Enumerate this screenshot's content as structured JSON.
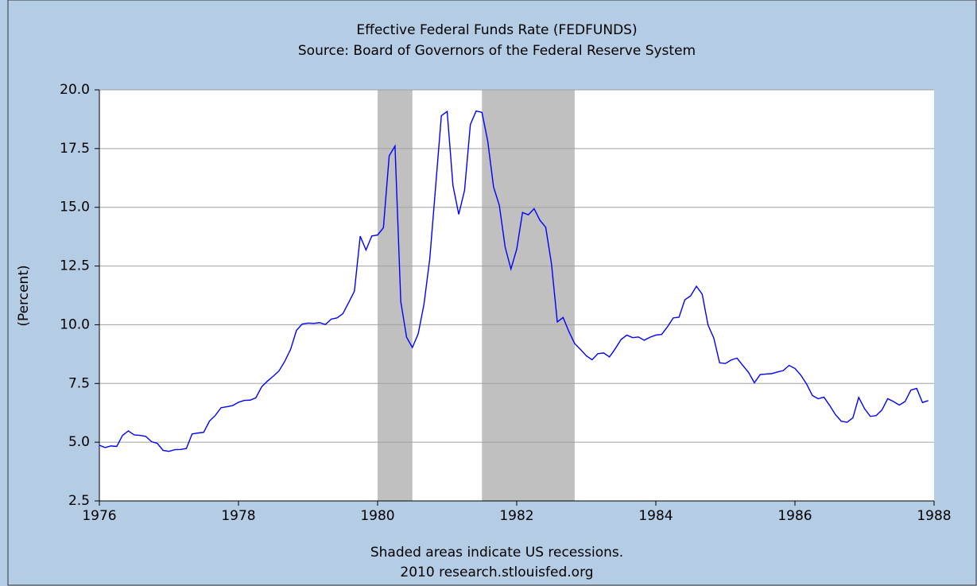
{
  "chart_data": {
    "type": "line",
    "title": "Effective Federal Funds Rate (FEDFUNDS)",
    "subtitle": "Source: Board of Governors of the Federal Reserve System",
    "y_label": "(Percent)",
    "notes": [
      "Shaded areas indicate US recessions.",
      "2010 research.stlouisfed.org"
    ],
    "color": "#0000ff",
    "grid": true,
    "shaded": [
      {
        "start": "1980-01",
        "end": "1980-07"
      },
      {
        "start": "1981-07",
        "end": "1982-11"
      }
    ],
    "shade_color": "#c0c0c0",
    "xlim": [
      1976,
      1988
    ],
    "xticks": [
      1976,
      1978,
      1980,
      1982,
      1984,
      1986,
      1988
    ],
    "ylim": [
      2.5,
      20
    ],
    "yticks": [
      2.5,
      {
        "value": 5,
        "label": "5.0"
      },
      7.5,
      {
        "value": 10,
        "label": "10.0"
      },
      12.5,
      {
        "value": 15,
        "label": "15.0"
      },
      17.5,
      {
        "value": 20,
        "label": "20.0"
      }
    ],
    "x": [
      "1976-01",
      "1976-02",
      "1976-03",
      "1976-04",
      "1976-05",
      "1976-06",
      "1976-07",
      "1976-08",
      "1976-09",
      "1976-10",
      "1976-11",
      "1976-12",
      "1977-01",
      "1977-02",
      "1977-03",
      "1977-04",
      "1977-05",
      "1977-06",
      "1977-07",
      "1977-08",
      "1977-09",
      "1977-10",
      "1977-11",
      "1977-12",
      "1978-01",
      "1978-02",
      "1978-03",
      "1978-04",
      "1978-05",
      "1978-06",
      "1978-07",
      "1978-08",
      "1978-09",
      "1978-10",
      "1978-11",
      "1978-12",
      "1979-01",
      "1979-02",
      "1979-03",
      "1979-04",
      "1979-05",
      "1979-06",
      "1979-07",
      "1979-08",
      "1979-09",
      "1979-10",
      "1979-11",
      "1979-12",
      "1980-01",
      "1980-02",
      "1980-03",
      "1980-04",
      "1980-05",
      "1980-06",
      "1980-07",
      "1980-08",
      "1980-09",
      "1980-10",
      "1980-11",
      "1980-12",
      "1981-01",
      "1981-02",
      "1981-03",
      "1981-04",
      "1981-05",
      "1981-06",
      "1981-07",
      "1981-08",
      "1981-09",
      "1981-10",
      "1981-11",
      "1981-12",
      "1982-01",
      "1982-02",
      "1982-03",
      "1982-04",
      "1982-05",
      "1982-06",
      "1982-07",
      "1982-08",
      "1982-09",
      "1982-10",
      "1982-11",
      "1982-12",
      "1983-01",
      "1983-02",
      "1983-03",
      "1983-04",
      "1983-05",
      "1983-06",
      "1983-07",
      "1983-08",
      "1983-09",
      "1983-10",
      "1983-11",
      "1983-12",
      "1984-01",
      "1984-02",
      "1984-03",
      "1984-04",
      "1984-05",
      "1984-06",
      "1984-07",
      "1984-08",
      "1984-09",
      "1984-10",
      "1984-11",
      "1984-12",
      "1985-01",
      "1985-02",
      "1985-03",
      "1985-04",
      "1985-05",
      "1985-06",
      "1985-07",
      "1985-08",
      "1985-09",
      "1985-10",
      "1985-11",
      "1985-12",
      "1986-01",
      "1986-02",
      "1986-03",
      "1986-04",
      "1986-05",
      "1986-06",
      "1986-07",
      "1986-08",
      "1986-09",
      "1986-10",
      "1986-11",
      "1986-12",
      "1987-01",
      "1987-02",
      "1987-03",
      "1987-04",
      "1987-05",
      "1987-06",
      "1987-07",
      "1987-08",
      "1987-09",
      "1987-10",
      "1987-11",
      "1987-12"
    ],
    "values": [
      4.87,
      4.77,
      4.84,
      4.82,
      5.29,
      5.48,
      5.31,
      5.29,
      5.25,
      5.02,
      4.95,
      4.65,
      4.61,
      4.68,
      4.69,
      4.73,
      5.35,
      5.39,
      5.42,
      5.9,
      6.14,
      6.47,
      6.51,
      6.56,
      6.7,
      6.78,
      6.79,
      6.89,
      7.36,
      7.6,
      7.81,
      8.04,
      8.45,
      8.96,
      9.76,
      10.03,
      10.07,
      10.06,
      10.09,
      10.01,
      10.24,
      10.29,
      10.47,
      10.94,
      11.43,
      13.77,
      13.18,
      13.78,
      13.82,
      14.13,
      17.19,
      17.61,
      10.98,
      9.47,
      9.03,
      9.61,
      10.87,
      12.81,
      15.85,
      18.9,
      19.08,
      15.93,
      14.7,
      15.72,
      18.52,
      19.1,
      19.04,
      17.82,
      15.87,
      15.08,
      13.31,
      12.37,
      13.22,
      14.78,
      14.68,
      14.94,
      14.45,
      14.15,
      12.59,
      10.12,
      10.31,
      9.71,
      9.2,
      8.95,
      8.68,
      8.51,
      8.77,
      8.8,
      8.63,
      8.98,
      9.37,
      9.56,
      9.45,
      9.48,
      9.34,
      9.47,
      9.56,
      9.59,
      9.91,
      10.29,
      10.32,
      11.06,
      11.23,
      11.64,
      11.3,
      9.99,
      9.43,
      8.38,
      8.35,
      8.5,
      8.58,
      8.27,
      7.97,
      7.53,
      7.88,
      7.9,
      7.92,
      7.99,
      8.05,
      8.27,
      8.14,
      7.86,
      7.48,
      6.99,
      6.85,
      6.92,
      6.56,
      6.17,
      5.89,
      5.85,
      6.04,
      6.91,
      6.43,
      6.1,
      6.13,
      6.37,
      6.85,
      6.73,
      6.58,
      6.73,
      7.22,
      7.29,
      6.69,
      6.77
    ]
  }
}
